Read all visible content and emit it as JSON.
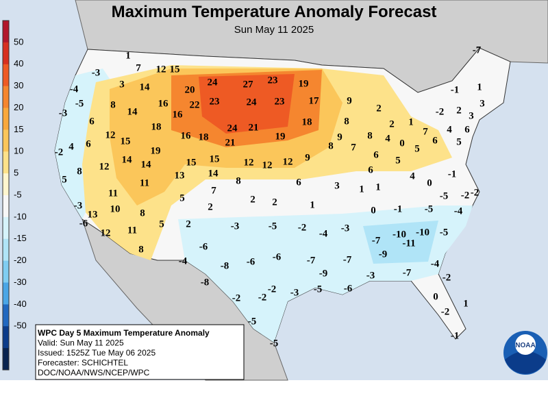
{
  "header": {
    "title": "Maximum Temperature Anomaly Forecast",
    "subtitle": "Sun May 11 2025"
  },
  "colorbar": {
    "labels": [
      "50",
      "40",
      "30",
      "20",
      "15",
      "10",
      "5",
      "-5",
      "-10",
      "-15",
      "-20",
      "-30",
      "-40",
      "-50"
    ],
    "colors": [
      "#b2182b",
      "#d73020",
      "#ee5a24",
      "#f5862f",
      "#f9a83c",
      "#fbc65a",
      "#fde28a",
      "#fff6cf",
      "#f7f7f7",
      "#d6f3fb",
      "#b0e4f7",
      "#7fcdf2",
      "#4aa6e6",
      "#2068c0",
      "#0b3c8a",
      "#08234f"
    ]
  },
  "map_labels": [
    1,
    7,
    12,
    15,
    -3,
    3,
    14,
    20,
    24,
    27,
    23,
    19,
    -4,
    -5,
    8,
    16,
    22,
    23,
    24,
    23,
    17,
    9,
    2,
    -3,
    14,
    16,
    6,
    18,
    24,
    21,
    18,
    8,
    1,
    2,
    -1,
    1,
    -2,
    2,
    3,
    3,
    4,
    6,
    7,
    12,
    15,
    16,
    18,
    21,
    19,
    9,
    8,
    4,
    0,
    5,
    6,
    5,
    -2,
    4,
    6,
    19,
    14,
    14,
    15,
    15,
    12,
    12,
    12,
    9,
    8,
    7,
    6,
    5,
    8,
    12,
    13,
    14,
    8,
    6,
    3,
    6,
    4,
    0,
    -1,
    -2,
    5,
    11,
    7,
    1,
    1,
    11,
    5,
    2,
    2,
    1,
    -5,
    -2,
    -3,
    10,
    8,
    2,
    0,
    -1,
    -5,
    -4,
    13,
    11,
    5,
    2,
    -3,
    -5,
    -2,
    -4,
    -3,
    -10,
    -5,
    -6,
    12,
    -10,
    -11,
    -7,
    -6,
    -6,
    -6,
    -7,
    -7,
    -9,
    8,
    -4,
    -8,
    -9,
    -3,
    -7,
    -4,
    -8,
    -2,
    -2,
    -2,
    -2,
    -3,
    -5,
    -6,
    0,
    1,
    -2,
    -5,
    -5,
    -1,
    -7
  ],
  "info": {
    "lines": [
      "WPC Day 5 Maximum Temperature Anomaly",
      "Valid: Sun May 11 2025",
      "Issued: 1525Z Tue May 06 2025",
      "Forecaster: SCHICHTEL",
      "DOC/NOAA/NWS/NCEP/WPC"
    ]
  },
  "logo": "NOAA"
}
